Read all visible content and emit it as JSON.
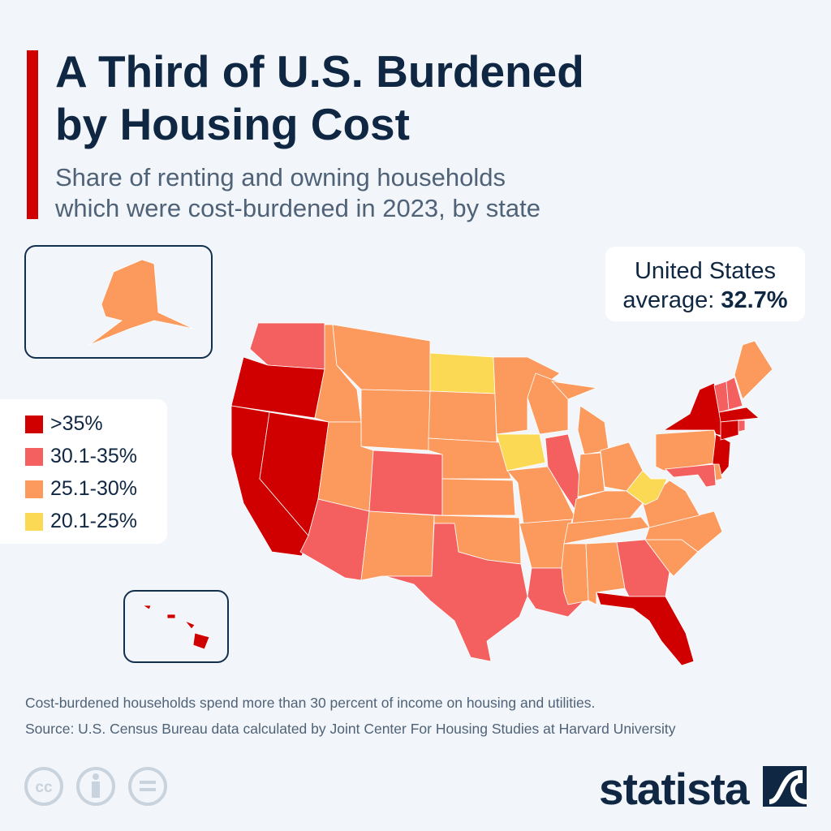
{
  "header": {
    "title_line1": "A Third of U.S. Burdened",
    "title_line2": "by Housing Cost",
    "subtitle_line1": "Share of renting and owning households",
    "subtitle_line2": "which were cost-burdened in 2023, by state"
  },
  "average": {
    "line1": "United States",
    "line2_prefix": "average: ",
    "value": "32.7%"
  },
  "legend": [
    {
      "label": ">35%",
      "color": "#d00000"
    },
    {
      "label": "30.1-35%",
      "color": "#f45f5f"
    },
    {
      "label": "25.1-30%",
      "color": "#fc9a5e"
    },
    {
      "label": "20.1-25%",
      "color": "#fbd955"
    }
  ],
  "states": {
    "WA": "30.1-35%",
    "OR": ">35%",
    "CA": ">35%",
    "NV": ">35%",
    "ID": "25.1-30%",
    "MT": "25.1-30%",
    "WY": "25.1-30%",
    "UT": "25.1-30%",
    "AZ": "30.1-35%",
    "CO": "30.1-35%",
    "NM": "25.1-30%",
    "ND": "20.1-25%",
    "SD": "25.1-30%",
    "NE": "25.1-30%",
    "KS": "25.1-30%",
    "OK": "25.1-30%",
    "TX": "30.1-35%",
    "MN": "25.1-30%",
    "IA": "20.1-25%",
    "MO": "25.1-30%",
    "AR": "25.1-30%",
    "LA": "30.1-35%",
    "WI": "25.1-30%",
    "IL": "30.1-35%",
    "MI": "25.1-30%",
    "IN": "25.1-30%",
    "OH": "25.1-30%",
    "KY": "25.1-30%",
    "TN": "25.1-30%",
    "MS": "25.1-30%",
    "AL": "25.1-30%",
    "GA": "30.1-35%",
    "FL": ">35%",
    "SC": "25.1-30%",
    "NC": "25.1-30%",
    "VA": "25.1-30%",
    "WV": "20.1-25%",
    "PA": "25.1-30%",
    "NY": ">35%",
    "NJ": ">35%",
    "MD": "30.1-35%",
    "DE": "25.1-30%",
    "VT": "30.1-35%",
    "NH": "30.1-35%",
    "ME": "25.1-30%",
    "MA": ">35%",
    "CT": ">35%",
    "RI": "30.1-35%",
    "AK": "25.1-30%",
    "HI": ">35%"
  },
  "footer": {
    "note": "Cost-burdened households spend more than 30 percent of income on housing and utilities.",
    "source": "Source: U.S. Census Bureau data calculated by Joint Center For Housing Studies at Harvard University",
    "logo": "statista"
  },
  "icons": [
    "cc-icon",
    "attribution-icon",
    "no-derivatives-icon",
    "statista-logo-icon"
  ]
}
